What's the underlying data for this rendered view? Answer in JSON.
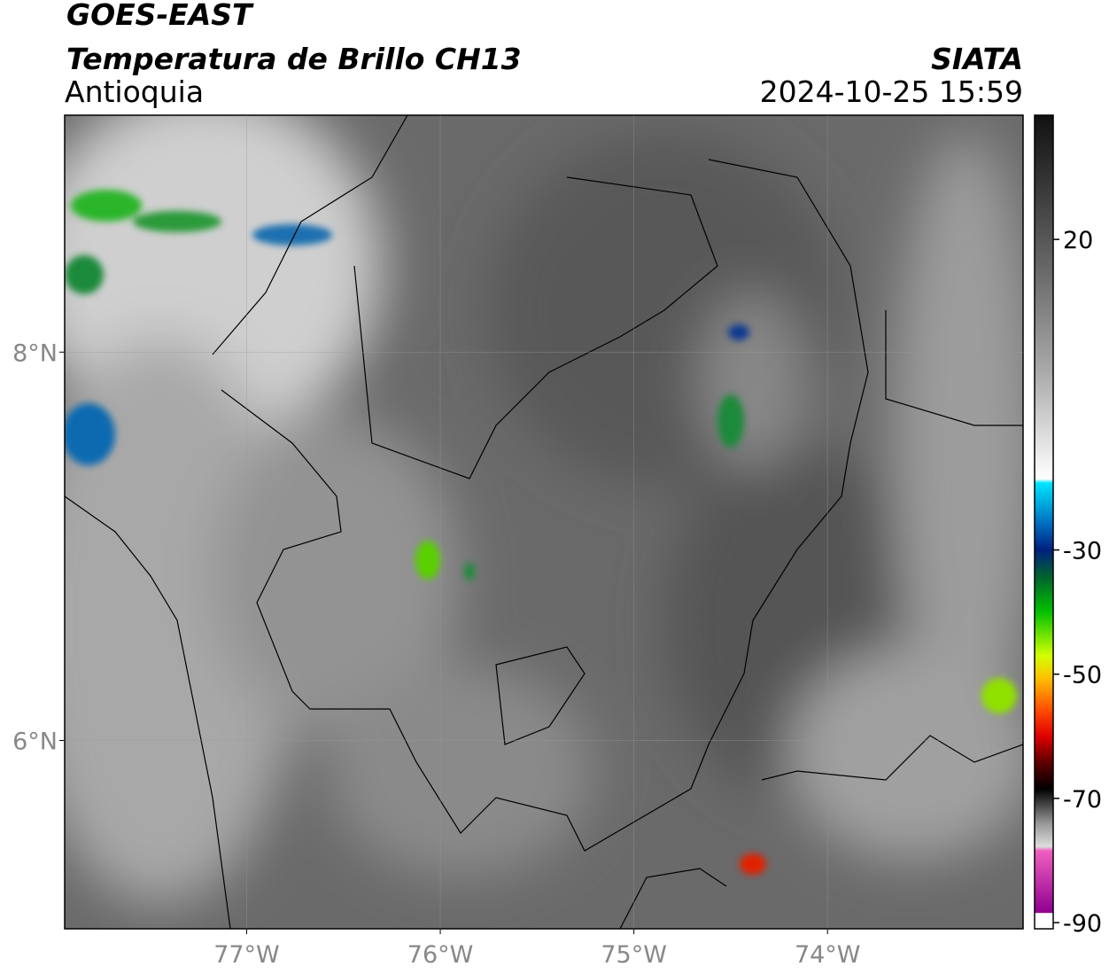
{
  "header": {
    "satellite": "GOES-EAST",
    "product": "Temperatura de Brillo CH13",
    "region": "Antioquia",
    "source": "SIATA",
    "datetime": "2024-10-25 15:59"
  },
  "map": {
    "xlim": [
      -77.94,
      -72.99
    ],
    "ylim": [
      5.03,
      9.22
    ],
    "xticks": [
      {
        "value": -77,
        "label": "77°W"
      },
      {
        "value": -76,
        "label": "76°W"
      },
      {
        "value": -75,
        "label": "75°W"
      },
      {
        "value": -74,
        "label": "74°W"
      }
    ],
    "yticks": [
      {
        "value": 8,
        "label": "8°N"
      },
      {
        "value": 6,
        "label": "6°N"
      }
    ]
  },
  "colorbar": {
    "lim": [
      -91,
      40
    ],
    "ticks": [
      20,
      -30,
      -50,
      -70,
      -90
    ]
  }
}
